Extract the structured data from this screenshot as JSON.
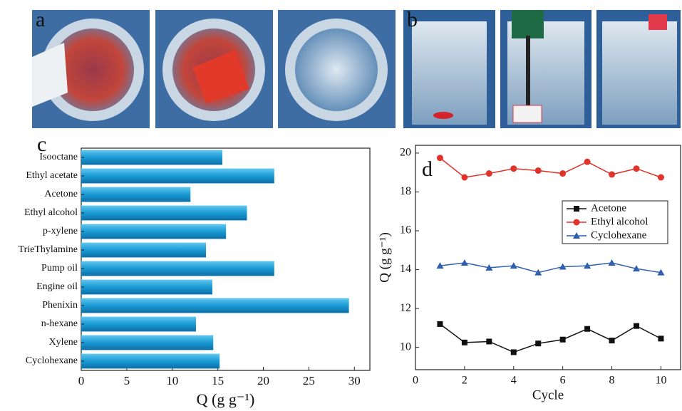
{
  "photo_labels": [
    "a",
    "b"
  ],
  "chart_data": [
    {
      "type": "hbar",
      "panel_label": "c",
      "xlabel": "Q (g g⁻¹)",
      "color": "#1a9ad4",
      "categories": [
        "Isooctane",
        "Ethyl acetate",
        "Acetone",
        "Ethyl alcohol",
        "p-xylene",
        "TrieThylamine",
        "Pump oil",
        "Engine oil",
        "Phenixin",
        "n-hexane",
        "Xylene",
        "Cyclohexane"
      ],
      "values": [
        15.5,
        21.2,
        12.0,
        18.2,
        15.9,
        13.7,
        21.2,
        14.4,
        29.4,
        12.6,
        14.5,
        15.2
      ],
      "xlim": [
        0,
        31.7
      ],
      "xticks": [
        0,
        5,
        10,
        15,
        20,
        25,
        30
      ]
    },
    {
      "type": "line",
      "panel_label": "d",
      "xlabel": "Cycle",
      "ylabel": "Q (g g⁻¹)",
      "x": [
        1,
        2,
        3,
        4,
        5,
        6,
        7,
        8,
        9,
        10
      ],
      "series": [
        {
          "name": "Acetone",
          "color": "#111111",
          "marker": "square",
          "values": [
            11.2,
            10.25,
            10.3,
            9.75,
            10.2,
            10.4,
            10.95,
            10.35,
            11.1,
            10.45
          ]
        },
        {
          "name": "Ethyl alcohol",
          "color": "#e0332a",
          "marker": "circle",
          "values": [
            19.75,
            18.75,
            18.95,
            19.2,
            19.1,
            18.95,
            19.55,
            18.9,
            19.2,
            18.75
          ]
        },
        {
          "name": "Cyclohexane",
          "color": "#2f5fb0",
          "marker": "triangle",
          "values": [
            14.2,
            14.35,
            14.1,
            14.2,
            13.85,
            14.15,
            14.2,
            14.35,
            14.05,
            13.85
          ]
        }
      ],
      "xlim": [
        0,
        10.8
      ],
      "xticks": [
        0,
        2,
        4,
        6,
        8,
        10
      ],
      "ylim": [
        8.85,
        20.4
      ],
      "yticks": [
        10,
        12,
        14,
        16,
        18,
        20
      ]
    }
  ]
}
